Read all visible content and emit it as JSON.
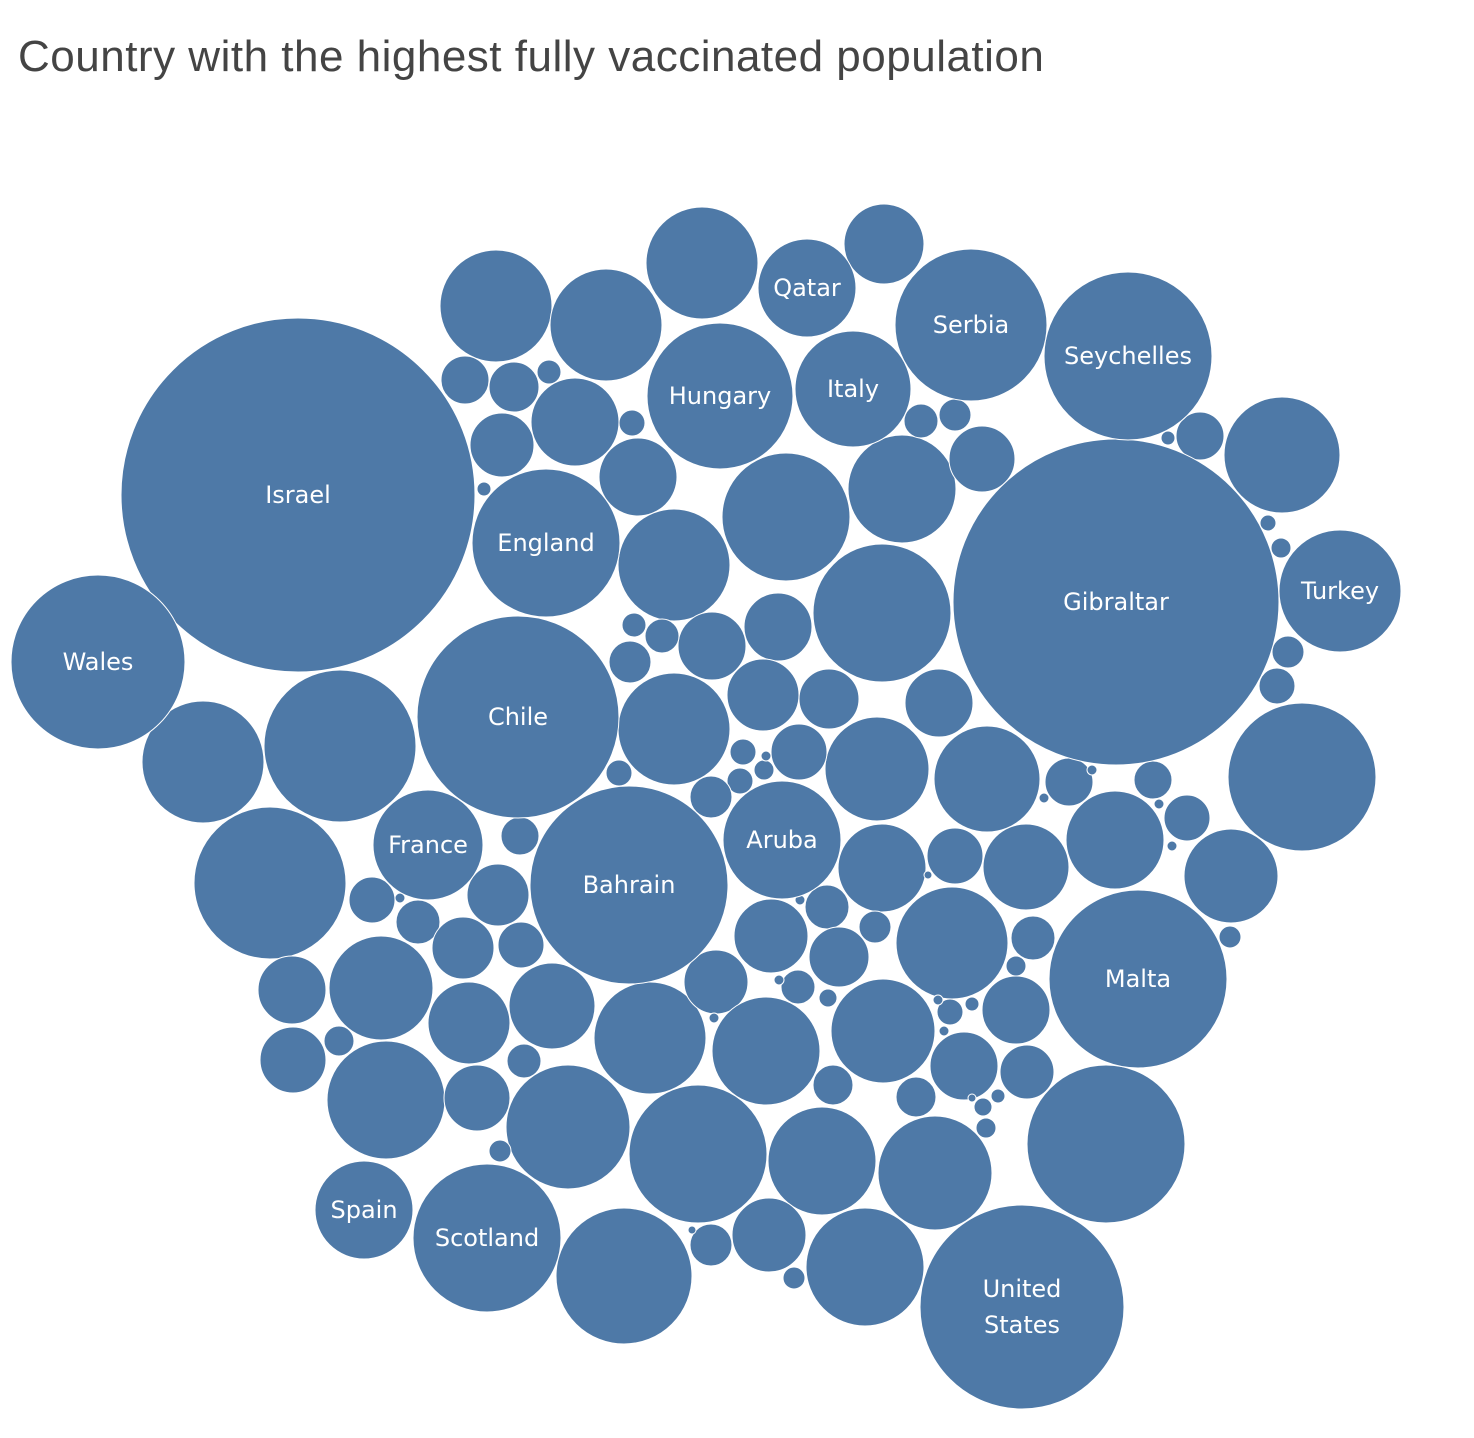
{
  "title": "Country with the highest fully vaccinated population",
  "chart_data": {
    "type": "packed-bubble",
    "title": "Country with the highest fully vaccinated population",
    "bubble_color": "#4e79a7",
    "label_color": "#ffffff",
    "labeled_bubbles": [
      {
        "label": "Israel"
      },
      {
        "label": "Gibraltar"
      },
      {
        "label": "Chile"
      },
      {
        "label": "Bahrain"
      },
      {
        "label": "United States"
      },
      {
        "label": "Malta"
      },
      {
        "label": "Wales"
      },
      {
        "label": "Seychelles"
      },
      {
        "label": "England"
      },
      {
        "label": "Scotland"
      },
      {
        "label": "Serbia"
      },
      {
        "label": "Hungary"
      },
      {
        "label": "Turkey"
      },
      {
        "label": "Aruba"
      },
      {
        "label": "Italy"
      },
      {
        "label": "France"
      },
      {
        "label": "Qatar"
      },
      {
        "label": "Spain"
      }
    ]
  }
}
